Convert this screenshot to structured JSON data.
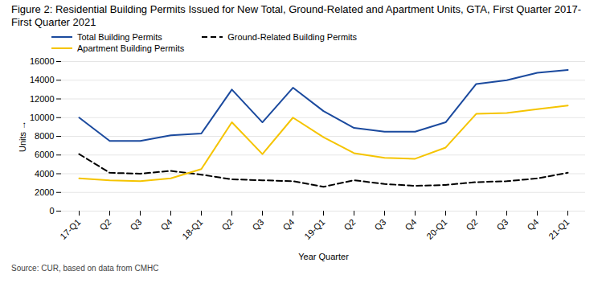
{
  "chart_data": {
    "type": "line",
    "title": "Figure 2: Residential Building Permits Issued for New Total, Ground-Related and Apartment Units, GTA, First Quarter 2017-First Quarter 2021",
    "caption": "Source: CUR, based on data from CMHC",
    "x_label": "Year Quarter",
    "y_label": "Units",
    "categories": [
      "17-Q1",
      "Q2",
      "Q3",
      "Q4",
      "18-Q1",
      "Q2",
      "Q3",
      "Q4",
      "19-Q1",
      "Q2",
      "Q3",
      "Q4",
      "20-Q1",
      "Q2",
      "Q3",
      "Q4",
      "21-Q1"
    ],
    "series": [
      {
        "name": "Total Building Permits",
        "color": "#1b4a9e",
        "line_style": "solid",
        "values": [
          10000,
          7500,
          7500,
          8100,
          8300,
          13000,
          9500,
          13200,
          10700,
          8900,
          8500,
          8500,
          9500,
          13600,
          14000,
          14800,
          15100
        ]
      },
      {
        "name": "Ground-Related Building Permits",
        "color": "#000000",
        "line_style": "dashed",
        "values": [
          6100,
          4100,
          4000,
          4300,
          3900,
          3400,
          3300,
          3200,
          2600,
          3300,
          2900,
          2700,
          2800,
          3100,
          3200,
          3500,
          4100
        ]
      },
      {
        "name": "Apartment Building Permits",
        "color": "#f5c400",
        "line_style": "solid",
        "values": [
          3500,
          3300,
          3200,
          3500,
          4500,
          9500,
          6100,
          10000,
          7900,
          6200,
          5700,
          5600,
          6800,
          10400,
          10500,
          10900,
          11300
        ]
      }
    ],
    "ylim": [
      0,
      16000
    ],
    "yticks": [
      0,
      2000,
      4000,
      6000,
      8000,
      10000,
      12000,
      14000,
      16000
    ],
    "grid": true,
    "legend": "top"
  }
}
